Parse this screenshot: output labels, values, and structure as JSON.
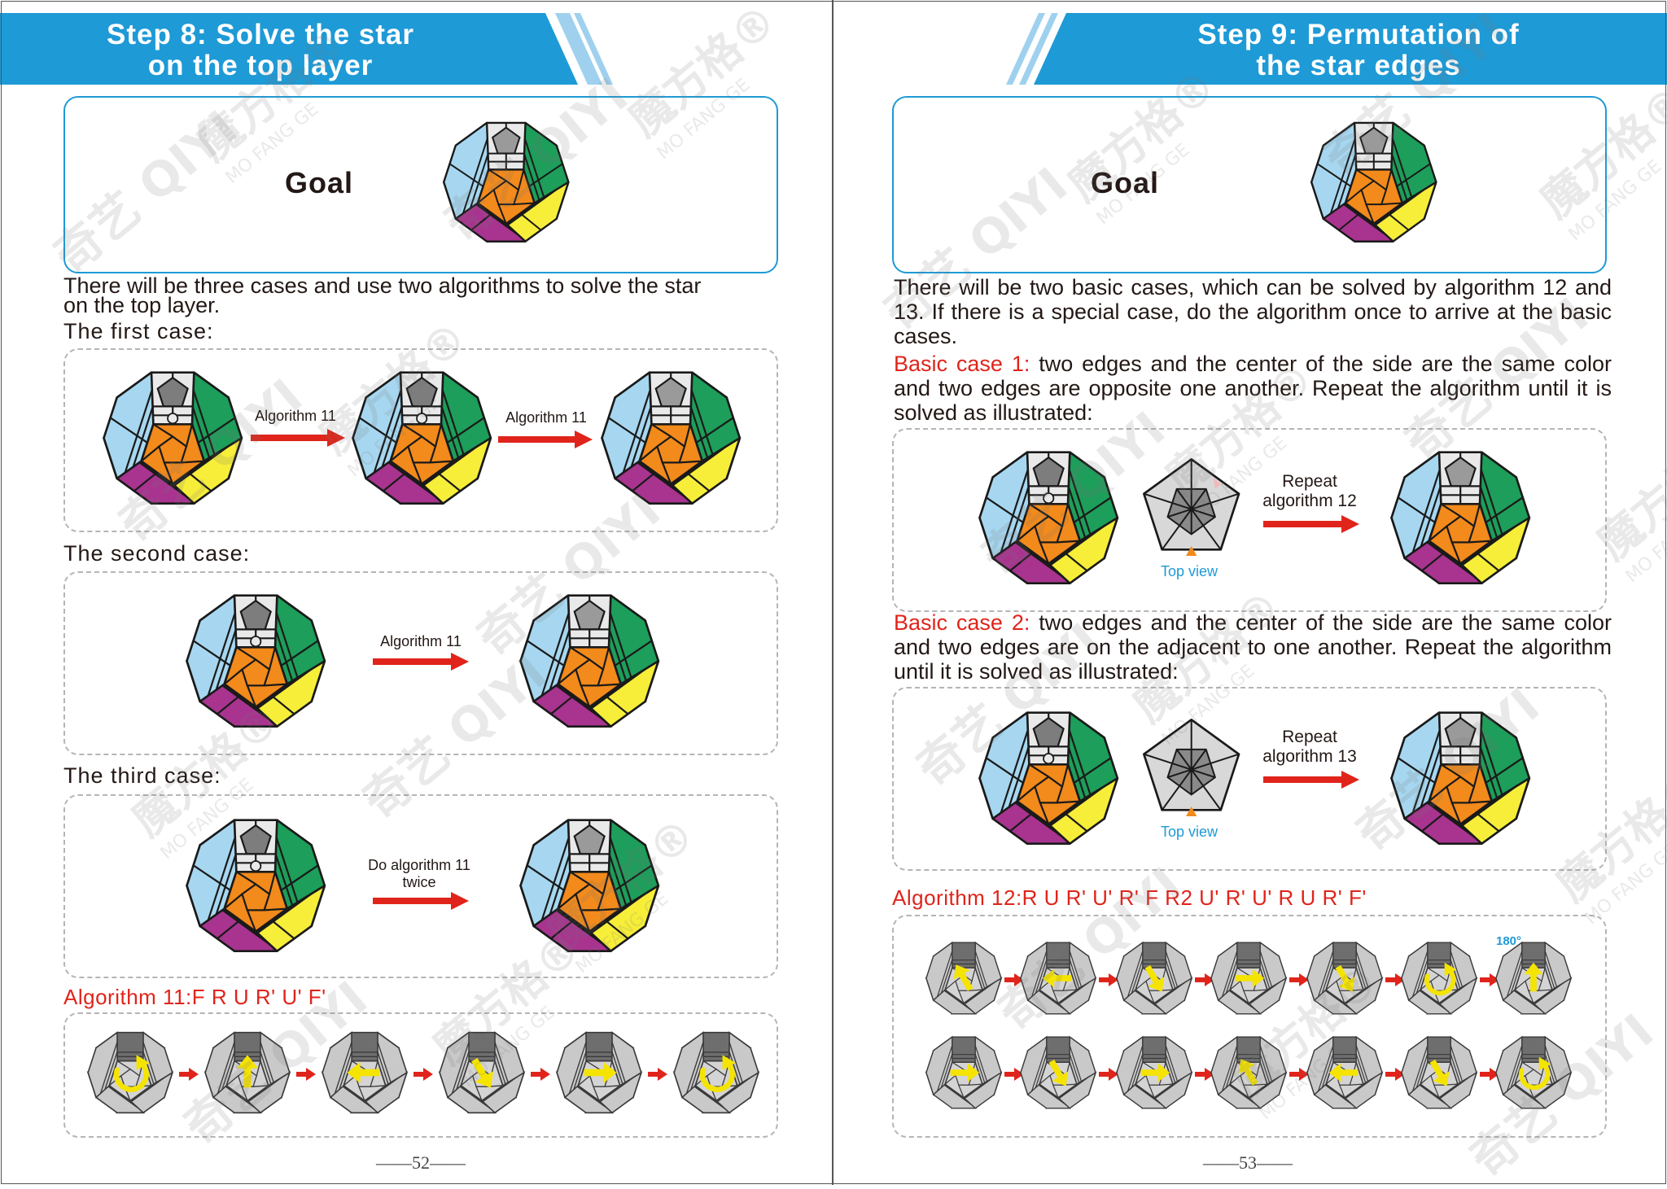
{
  "left_page": {
    "title_line1": "Step 8: Solve the star",
    "title_line2": "on the top layer",
    "goal_label": "Goal",
    "intro_line1": "There will be three cases and use two algorithms to solve the star",
    "intro_line2": "on the top layer.",
    "case1_heading": "The first case:",
    "case1_arrow1": "Algorithm 11",
    "case1_arrow2": "Algorithm 11",
    "case2_heading": "The second case:",
    "case2_arrow": "Algorithm 11",
    "case3_heading": "The third case:",
    "case3_arrow_line1": "Do algorithm 11",
    "case3_arrow_line2": "twice",
    "algorithm_heading": "Algorithm 11:F R U R' U' F'",
    "page_number": "——52——"
  },
  "right_page": {
    "title_line1": "Step 9: Permutation of",
    "title_line2": "the star edges",
    "goal_label": "Goal",
    "intro": "There will be two basic cases, which can be solved by algorithm 12 and 13. If there is a special case, do the algorithm once to arrive at the basic cases.",
    "basic1_label": "Basic case 1:",
    "basic1_text": " two edges and the center of the side are the same color and two edges are opposite one another. Repeat the algorithm until it is solved as illustrated:",
    "basic1_arrow_line1": "Repeat",
    "basic1_arrow_line2": "algorithm 12",
    "top_view_1": "Top view",
    "basic2_label": "Basic case 2:",
    "basic2_text": " two edges and the center of the side are the same color and two edges are on the adjacent to one another. Repeat the algorithm until it is solved as illustrated:",
    "basic2_arrow_line1": "Repeat",
    "basic2_arrow_line2": "algorithm 13",
    "top_view_2": "Top view",
    "algorithm_heading": "Algorithm 12:R U R' U' R' F R2 U' R' U' R U R' F'",
    "rotation_note": "180°",
    "page_number": "——53——"
  },
  "watermark": {
    "brand_a": "奇艺",
    "brand_b": "QIYI",
    "brand_c": "魔方格",
    "brand_d": "MO FANG GE",
    "registered": "®"
  },
  "colors": {
    "banner_blue": "#1e9ad6",
    "alg_red": "#e0241b",
    "arrow_red": "#e0241b",
    "orange": "#f28a1c",
    "yellow": "#f7ee3a",
    "green": "#1d9e5a",
    "purple": "#a8348f",
    "light_blue": "#a7d7f0",
    "white_face": "#e9e9e9",
    "gray_face": "#8e8e8e",
    "arrow_yellow": "#f5e400"
  },
  "icons": [
    "megaminx-icon",
    "right-arrow-icon",
    "top-view-pentagon-icon",
    "rotate-arrow-icon",
    "move-arrow-icon"
  ]
}
